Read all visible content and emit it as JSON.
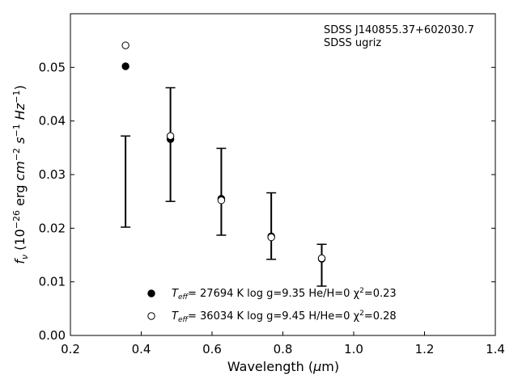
{
  "chart_data": {
    "type": "scatter",
    "xlabel": "Wavelength (μm)",
    "ylabel": "f_ν (10^-26 erg cm^-2 s^-1 Hz^-1)",
    "xlim": [
      0.2,
      1.4
    ],
    "ylim": [
      0.0,
      0.06
    ],
    "x_ticks": [
      "0.2",
      "0.4",
      "0.6",
      "0.8",
      "1.0",
      "1.2",
      "1.4"
    ],
    "y_ticks": [
      "0.00",
      "0.01",
      "0.02",
      "0.03",
      "0.04",
      "0.05"
    ],
    "annotations": [
      "SDSS J140855.37+602030.7",
      "SDSS ugriz"
    ],
    "observed": {
      "x": [
        0.3557,
        0.4825,
        0.6261,
        0.7672,
        0.9097
      ],
      "y": [
        0.0287,
        0.0356,
        0.0268,
        0.0204,
        0.0131
      ],
      "yerr": [
        0.0085,
        0.0106,
        0.0081,
        0.0062,
        0.0039
      ]
    },
    "series": [
      {
        "name": "Teff= 27694 K  log g=9.35  He/H=0  χ²=0.23",
        "marker": "filled-circle",
        "x": [
          0.3557,
          0.4825,
          0.6261,
          0.7672,
          0.9097
        ],
        "y": [
          0.0502,
          0.0366,
          0.0255,
          0.0185,
          0.0143
        ]
      },
      {
        "name": "Teff= 36034 K  log g=9.45  H/He=0  χ²=0.28",
        "marker": "open-circle",
        "x": [
          0.3557,
          0.4825,
          0.6261,
          0.7672,
          0.9097
        ],
        "y": [
          0.0541,
          0.0372,
          0.0252,
          0.0183,
          0.0144
        ]
      }
    ],
    "legend": {
      "placement": "lower-center",
      "entries": [
        {
          "sym": "T",
          "sub": "eff",
          "text": "= 27694 K  log g=9.35  He/H=0  χ",
          "sup": "2",
          "tail": "=0.23"
        },
        {
          "sym": "T",
          "sub": "eff",
          "text": "= 36034 K  log g=9.45  H/He=0  χ",
          "sup": "2",
          "tail": "=0.28"
        }
      ]
    },
    "grid": false,
    "colors": {
      "marker": "#000000",
      "axes": "#000000",
      "background": "#ffffff"
    }
  }
}
